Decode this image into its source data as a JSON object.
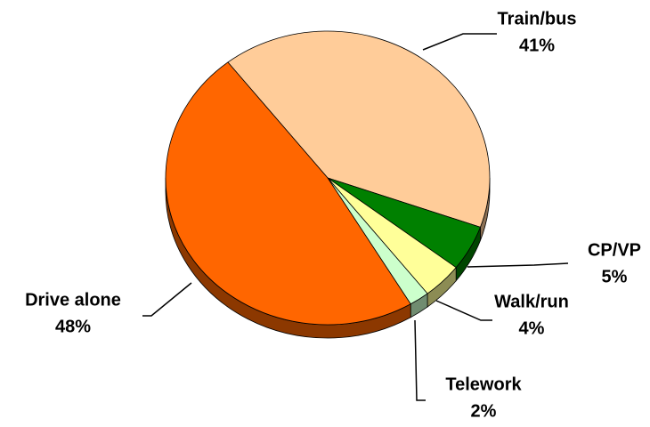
{
  "chart_data": {
    "type": "pie3d",
    "categories": [
      "Train/bus",
      "CP/VP",
      "Walk/run",
      "Telework",
      "Drive alone"
    ],
    "values": [
      41,
      5,
      4,
      2,
      48
    ],
    "value_labels": [
      "41%",
      "5%",
      "4%",
      "2%",
      "48%"
    ],
    "colors": [
      "#FFCC99",
      "#008000",
      "#FFFF99",
      "#CCFFCC",
      "#FF6600"
    ]
  }
}
